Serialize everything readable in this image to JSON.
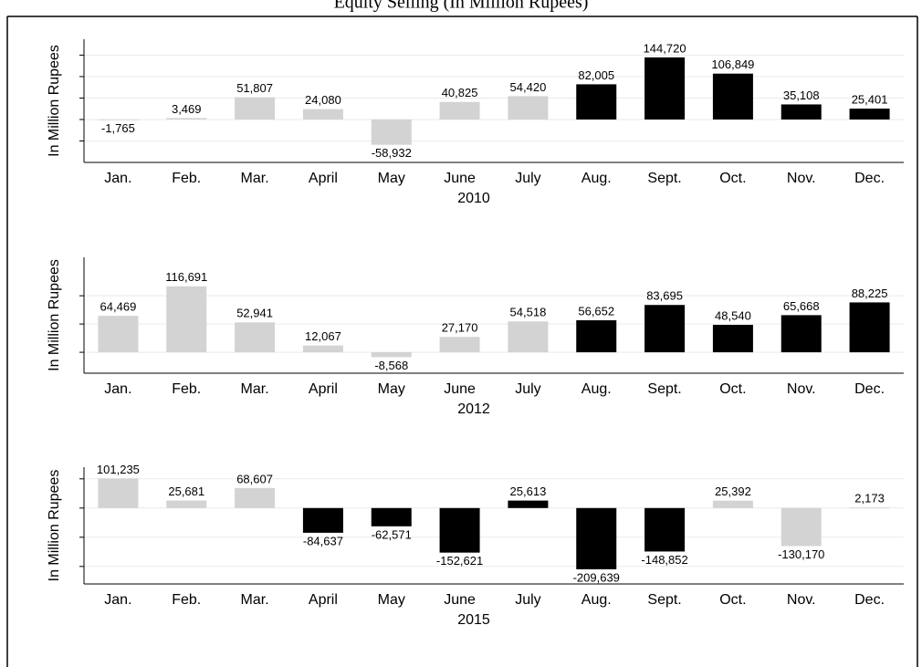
{
  "chart_data": [
    {
      "type": "bar",
      "title": "Equity Selling (In Million Rupees)",
      "ylabel": "In Million Rupees",
      "xlabel": "2010",
      "categories": [
        "Jan.",
        "Feb.",
        "Mar.",
        "April",
        "May",
        "June",
        "July",
        "Aug.",
        "Sept.",
        "Oct.",
        "Nov.",
        "Dec."
      ],
      "values": [
        -1765,
        3469,
        51807,
        24080,
        -58932,
        40825,
        54420,
        82005,
        144720,
        106849,
        35108,
        25401
      ],
      "value_labels": [
        "-1,765",
        "3,469",
        "51,807",
        "24,080",
        "-58,932",
        "40,825",
        "54,420",
        "82,005",
        "144,720",
        "106,849",
        "35,108",
        "25,401"
      ],
      "colors": [
        "#d3d3d3",
        "#d3d3d3",
        "#d3d3d3",
        "#d3d3d3",
        "#d3d3d3",
        "#d3d3d3",
        "#d3d3d3",
        "#000000",
        "#000000",
        "#000000",
        "#000000",
        "#000000"
      ],
      "ylim": [
        -100000,
        187000
      ],
      "yticks": [
        -50000,
        0,
        50000,
        100000,
        150000
      ],
      "grid": true
    },
    {
      "type": "bar",
      "ylabel": "In Million Rupees",
      "xlabel": "2012",
      "categories": [
        "Jan.",
        "Feb.",
        "Mar.",
        "April",
        "May",
        "June",
        "July",
        "Aug.",
        "Sept.",
        "Oct.",
        "Nov.",
        "Dec."
      ],
      "values": [
        64469,
        116691,
        52941,
        12067,
        -8568,
        27170,
        54518,
        56652,
        83695,
        48540,
        65668,
        88225
      ],
      "value_labels": [
        "64,469",
        "116,691",
        "52,941",
        "12,067",
        "-8,568",
        "27,170",
        "54,518",
        "56,652",
        "83,695",
        "48,540",
        "65,668",
        "88,225"
      ],
      "colors": [
        "#d3d3d3",
        "#d3d3d3",
        "#d3d3d3",
        "#d3d3d3",
        "#d3d3d3",
        "#d3d3d3",
        "#d3d3d3",
        "#000000",
        "#000000",
        "#000000",
        "#000000",
        "#000000"
      ],
      "ylim": [
        -37000,
        168000
      ],
      "yticks": [
        0,
        50000,
        100000
      ],
      "grid": true
    },
    {
      "type": "bar",
      "ylabel": "In Million Rupees",
      "xlabel": "2015",
      "categories": [
        "Jan.",
        "Feb.",
        "Mar.",
        "April",
        "May",
        "June",
        "July",
        "Aug.",
        "Sept.",
        "Oct.",
        "Nov.",
        "Dec."
      ],
      "values": [
        101235,
        25681,
        68607,
        -84637,
        -62571,
        -152621,
        25613,
        -209639,
        -148852,
        25392,
        -130170,
        2173
      ],
      "value_labels": [
        "101,235",
        "25,681",
        "68,607",
        "-84,637",
        "-62,571",
        "-152,621",
        "25,613",
        "-209,639",
        "-148,852",
        "25,392",
        "-130,170",
        "2,173"
      ],
      "colors": [
        "#d3d3d3",
        "#d3d3d3",
        "#d3d3d3",
        "#000000",
        "#000000",
        "#000000",
        "#000000",
        "#000000",
        "#000000",
        "#d3d3d3",
        "#d3d3d3",
        "#d3d3d3"
      ],
      "ylim": [
        -260000,
        140000
      ],
      "yticks": [
        -200000,
        -100000,
        0,
        100000
      ],
      "grid": true
    }
  ]
}
